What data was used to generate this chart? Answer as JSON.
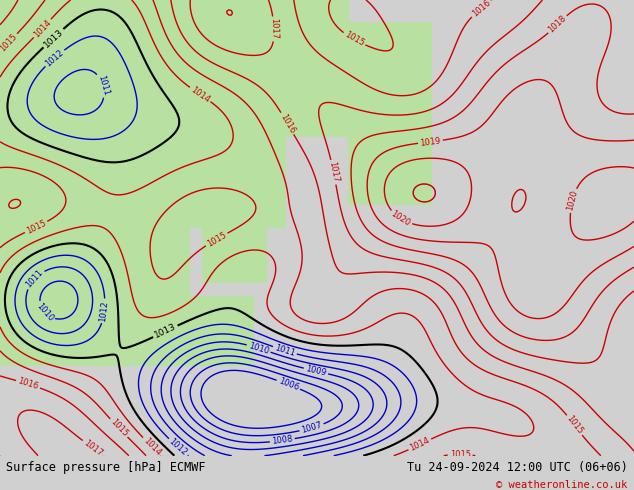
{
  "title_left": "Surface pressure [hPa] ECMWF",
  "title_right": "Tu 24-09-2024 12:00 UTC (06+06)",
  "copyright": "© weatheronline.co.uk",
  "bg_color": "#d0d0d0",
  "land_color_green": "#b8e0a0",
  "land_color_light": "#e8e8e8",
  "contour_levels": [
    1006,
    1007,
    1008,
    1009,
    1010,
    1011,
    1012,
    1013,
    1014,
    1015,
    1016,
    1017,
    1018,
    1019,
    1020
  ],
  "pressure_min": 1005,
  "pressure_max": 1024,
  "bottom_bar_color": "#c8c8c8",
  "label_fontsize": 8,
  "bottom_text_color": "#000000",
  "red_color": "#cc0000",
  "blue_color": "#0000cc",
  "black_color": "#000000",
  "gray_color": "#808080"
}
